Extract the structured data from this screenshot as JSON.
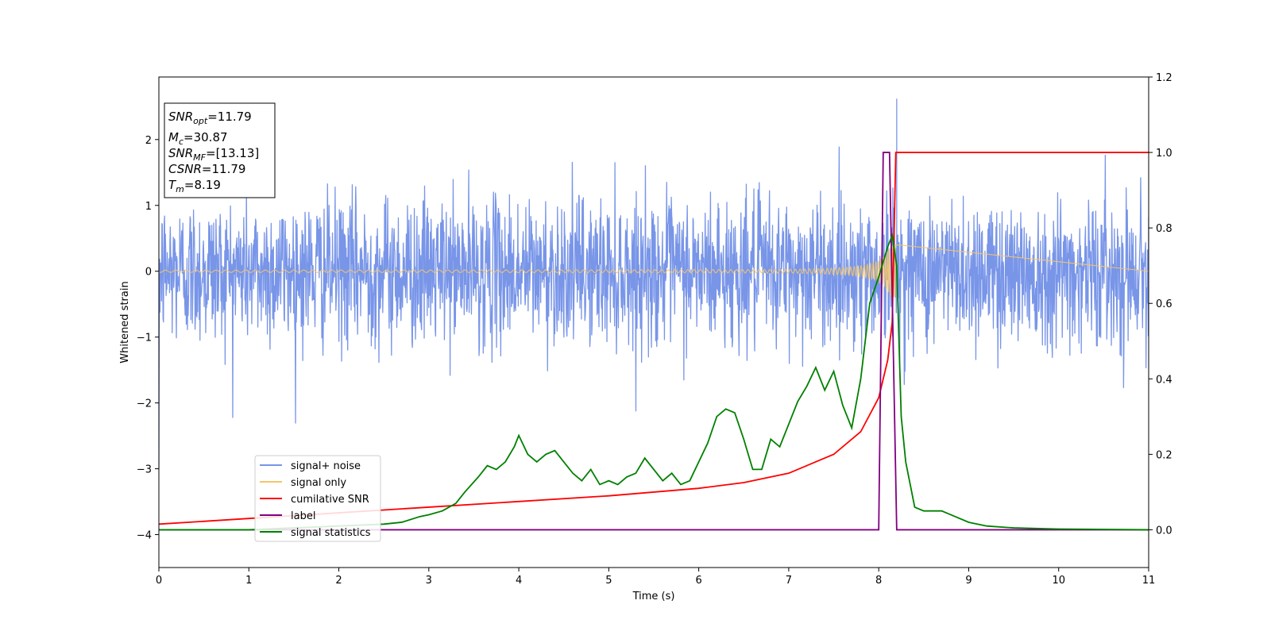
{
  "chart_data": {
    "type": "line",
    "xlabel": "Time (s)",
    "ylabel": "Whitened strain",
    "xlim": [
      0,
      11
    ],
    "ylim": [
      -4.5,
      2.95
    ],
    "y2lim": [
      -0.1,
      1.2
    ],
    "x_ticks": [
      "0",
      "1",
      "2",
      "3",
      "4",
      "5",
      "6",
      "7",
      "8",
      "9",
      "10",
      "11"
    ],
    "y_ticks": [
      "2",
      "1",
      "0",
      "−1",
      "−2",
      "−3",
      "−4"
    ],
    "y2_ticks": [
      "1.2",
      "1.0",
      "0.8",
      "0.6",
      "0.4",
      "0.2",
      "0.0"
    ],
    "legend_position": "lower-left",
    "colors": {
      "signal_noise": "#7895e8",
      "signal_only": "#f5c56b",
      "cumulative_snr": "#ff0000",
      "label": "#800080",
      "signal_statistics": "#008000"
    },
    "annotation": {
      "snr_opt": {
        "base": "SNR",
        "sub": "opt",
        "value": "=11.79"
      },
      "mc": {
        "base": "M",
        "sub": "c",
        "value": "=30.87"
      },
      "snr_mf": {
        "base": "SNR",
        "sub": "MF",
        "value": "=[13.13]"
      },
      "csnr": {
        "base": "CSNR",
        "value": "=11.79"
      },
      "tm": {
        "base": "T",
        "sub": "m",
        "value": "=8.19"
      }
    },
    "series": [
      {
        "key": "signal_noise",
        "name": "signal+ noise",
        "axis": "left",
        "description_values": {
          "noise_std": 0.55,
          "peak_value": 2.62,
          "peak_x": 8.2
        }
      },
      {
        "key": "signal_only",
        "name": "signal only",
        "axis": "left",
        "chirp": {
          "start_x": 0,
          "merger_x": 8.19,
          "end_x": 8.25,
          "max_amplitude": 0.4
        }
      },
      {
        "key": "cumulative_snr",
        "name": "cumilative SNR",
        "axis": "right",
        "x": [
          0,
          1,
          2,
          3,
          4,
          5,
          6,
          6.5,
          7,
          7.5,
          7.8,
          8.0,
          8.1,
          8.15,
          8.19,
          11
        ],
        "y": [
          0.015,
          0.03,
          0.045,
          0.06,
          0.075,
          0.09,
          0.11,
          0.125,
          0.15,
          0.2,
          0.26,
          0.35,
          0.45,
          0.55,
          1.0,
          1.0
        ]
      },
      {
        "key": "label",
        "name": "label",
        "axis": "right",
        "x": [
          0,
          8.0,
          8.05,
          8.12,
          8.2,
          11
        ],
        "y": [
          0,
          0,
          1,
          1,
          0,
          0
        ]
      },
      {
        "key": "signal_statistics",
        "name": "signal statistics",
        "axis": "right",
        "x": [
          0,
          1,
          1.5,
          2,
          2.5,
          2.7,
          2.9,
          3.0,
          3.15,
          3.3,
          3.4,
          3.55,
          3.65,
          3.75,
          3.85,
          3.95,
          4.0,
          4.1,
          4.2,
          4.3,
          4.4,
          4.5,
          4.6,
          4.7,
          4.8,
          4.9,
          5.0,
          5.1,
          5.2,
          5.3,
          5.4,
          5.5,
          5.6,
          5.7,
          5.8,
          5.9,
          6.0,
          6.1,
          6.2,
          6.3,
          6.4,
          6.5,
          6.6,
          6.7,
          6.8,
          6.9,
          7.0,
          7.1,
          7.2,
          7.3,
          7.4,
          7.5,
          7.6,
          7.7,
          7.8,
          7.9,
          8.0,
          8.1,
          8.15,
          8.2,
          8.25,
          8.3,
          8.35,
          8.4,
          8.5,
          8.6,
          8.7,
          8.8,
          9.0,
          9.2,
          9.5,
          10,
          11
        ],
        "y": [
          0.0,
          0.0,
          0.005,
          0.01,
          0.015,
          0.02,
          0.035,
          0.04,
          0.05,
          0.07,
          0.1,
          0.14,
          0.17,
          0.16,
          0.18,
          0.22,
          0.25,
          0.2,
          0.18,
          0.2,
          0.21,
          0.18,
          0.15,
          0.13,
          0.16,
          0.12,
          0.13,
          0.12,
          0.14,
          0.15,
          0.19,
          0.16,
          0.13,
          0.15,
          0.12,
          0.13,
          0.18,
          0.23,
          0.3,
          0.32,
          0.31,
          0.24,
          0.16,
          0.16,
          0.24,
          0.22,
          0.28,
          0.34,
          0.38,
          0.43,
          0.37,
          0.42,
          0.33,
          0.27,
          0.4,
          0.6,
          0.67,
          0.75,
          0.78,
          0.7,
          0.3,
          0.18,
          0.12,
          0.06,
          0.05,
          0.05,
          0.05,
          0.04,
          0.02,
          0.01,
          0.005,
          0.002,
          0.0
        ]
      }
    ]
  }
}
